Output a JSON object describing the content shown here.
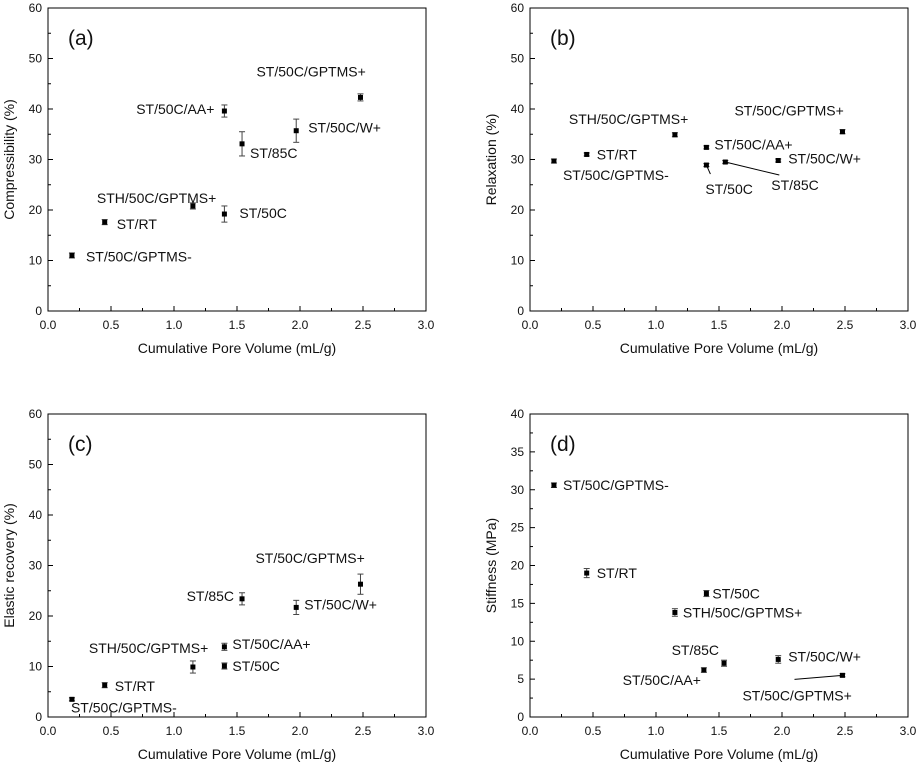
{
  "chart_data": [
    {
      "type": "scatter",
      "panel": "(a)",
      "xlabel": "Cumulative Pore Volume (mL/g)",
      "ylabel": "Compressibility (%)",
      "xlim": [
        0,
        3.0
      ],
      "ylim": [
        0,
        60
      ],
      "xticks": [
        "0.0",
        "0.5",
        "1.0",
        "1.5",
        "2.0",
        "2.5",
        "3.0"
      ],
      "yticks": [
        "0",
        "10",
        "20",
        "30",
        "40",
        "50",
        "60"
      ],
      "points": [
        {
          "label": "ST/50C/GPTMS-",
          "x": 0.19,
          "y": 11.0,
          "err": 0.5
        },
        {
          "label": "ST/RT",
          "x": 0.45,
          "y": 17.6,
          "err": 0.5
        },
        {
          "label": "STH/50C/GPTMS+",
          "x": 1.15,
          "y": 20.8,
          "err": 0.6
        },
        {
          "label": "ST/50C",
          "x": 1.4,
          "y": 19.2,
          "err": 1.6
        },
        {
          "label": "ST/50C/AA+",
          "x": 1.4,
          "y": 39.6,
          "err": 1.2
        },
        {
          "label": "ST/85C",
          "x": 1.54,
          "y": 33.1,
          "err": 2.4
        },
        {
          "label": "ST/50C/W+",
          "x": 1.97,
          "y": 35.7,
          "err": 2.3
        },
        {
          "label": "ST/50C/GPTMS+",
          "x": 2.48,
          "y": 42.3,
          "err": 0.7
        }
      ]
    },
    {
      "type": "scatter",
      "panel": "(b)",
      "xlabel": "Cumulative Pore Volume (mL/g)",
      "ylabel": "Relaxation (%)",
      "xlim": [
        0,
        3.0
      ],
      "ylim": [
        0,
        60
      ],
      "xticks": [
        "0.0",
        "0.5",
        "1.0",
        "1.5",
        "2.0",
        "2.5",
        "3.0"
      ],
      "yticks": [
        "0",
        "10",
        "20",
        "30",
        "40",
        "50",
        "60"
      ],
      "points": [
        {
          "label": "ST/50C/GPTMS-",
          "x": 0.19,
          "y": 29.7,
          "err": 0.4
        },
        {
          "label": "ST/RT",
          "x": 0.45,
          "y": 31.0,
          "err": 0.3
        },
        {
          "label": "STH/50C/GPTMS+",
          "x": 1.15,
          "y": 34.9,
          "err": 0.4
        },
        {
          "label": "ST/50C/AA+",
          "x": 1.4,
          "y": 32.4,
          "err": 0.3
        },
        {
          "label": "ST/50C",
          "x": 1.4,
          "y": 28.9,
          "err": 0.3
        },
        {
          "label": "ST/85C",
          "x": 1.55,
          "y": 29.5,
          "err": 0.3
        },
        {
          "label": "ST/50C/W+",
          "x": 1.97,
          "y": 29.8,
          "err": 0.3
        },
        {
          "label": "ST/50C/GPTMS+",
          "x": 2.48,
          "y": 35.5,
          "err": 0.4
        }
      ]
    },
    {
      "type": "scatter",
      "panel": "(c)",
      "xlabel": "Cumulative Pore Volume (mL/g)",
      "ylabel": "Elastic recovery (%)",
      "xlim": [
        0,
        3.0
      ],
      "ylim": [
        0,
        60
      ],
      "xticks": [
        "0.0",
        "0.5",
        "1.0",
        "1.5",
        "2.0",
        "2.5",
        "3.0"
      ],
      "yticks": [
        "0",
        "10",
        "20",
        "30",
        "40",
        "50",
        "60"
      ],
      "points": [
        {
          "label": "ST/50C/GPTMS-",
          "x": 0.19,
          "y": 3.5,
          "err": 0.3
        },
        {
          "label": "ST/RT",
          "x": 0.45,
          "y": 6.3,
          "err": 0.5
        },
        {
          "label": "STH/50C/GPTMS+",
          "x": 1.15,
          "y": 9.9,
          "err": 1.2
        },
        {
          "label": "ST/50C/AA+",
          "x": 1.4,
          "y": 13.9,
          "err": 0.7
        },
        {
          "label": "ST/50C",
          "x": 1.4,
          "y": 10.1,
          "err": 0.6
        },
        {
          "label": "ST/85C",
          "x": 1.54,
          "y": 23.4,
          "err": 1.2
        },
        {
          "label": "ST/50C/W+",
          "x": 1.97,
          "y": 21.7,
          "err": 1.4
        },
        {
          "label": "ST/50C/GPTMS+",
          "x": 2.48,
          "y": 26.3,
          "err": 2.0
        }
      ]
    },
    {
      "type": "scatter",
      "panel": "(d)",
      "xlabel": "Cumulative Pore Volume (mL/g)",
      "ylabel": "Stiffness (MPa)",
      "xlim": [
        0,
        3.0
      ],
      "ylim": [
        0,
        40
      ],
      "xticks": [
        "0.0",
        "0.5",
        "1.0",
        "1.5",
        "2.0",
        "2.5",
        "3.0"
      ],
      "yticks": [
        "0",
        "5",
        "10",
        "15",
        "20",
        "25",
        "30",
        "35",
        "40"
      ],
      "points": [
        {
          "label": "ST/50C/GPTMS-",
          "x": 0.19,
          "y": 30.6,
          "err": 0.3
        },
        {
          "label": "ST/RT",
          "x": 0.45,
          "y": 19.0,
          "err": 0.6
        },
        {
          "label": "ST/50C",
          "x": 1.4,
          "y": 16.3,
          "err": 0.4
        },
        {
          "label": "STH/50C/GPTMS+",
          "x": 1.15,
          "y": 13.8,
          "err": 0.5
        },
        {
          "label": "ST/85C",
          "x": 1.54,
          "y": 7.1,
          "err": 0.4
        },
        {
          "label": "ST/50C/AA+",
          "x": 1.38,
          "y": 6.2,
          "err": 0.3
        },
        {
          "label": "ST/50C/W+",
          "x": 1.97,
          "y": 7.6,
          "err": 0.5
        },
        {
          "label": "ST/50C/GPTMS+",
          "x": 2.48,
          "y": 5.5,
          "err": 0.2
        }
      ]
    }
  ]
}
